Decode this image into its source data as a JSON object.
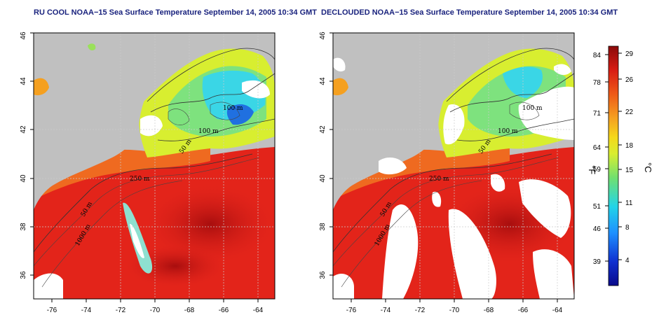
{
  "panels": [
    {
      "title": "RU COOL NOAA−15 Sea Surface Temperature September 14, 2005 10:34 GMT",
      "x_ticks": [
        "-76",
        "-74",
        "-72",
        "-70",
        "-68",
        "-66",
        "-64"
      ],
      "y_ticks": [
        "36",
        "38",
        "40",
        "42",
        "44",
        "46"
      ],
      "contour_labels": [
        "100 m",
        "100 m",
        "50 m",
        "250 m",
        "50 m",
        "1000 m"
      ]
    },
    {
      "title": "DECLOUDED NOAA−15 Sea Surface Temperature September 14, 2005 10:34 GMT",
      "x_ticks": [
        "-76",
        "-74",
        "-72",
        "-70",
        "-68",
        "-66",
        "-64"
      ],
      "y_ticks": [
        "36",
        "38",
        "40",
        "42",
        "44",
        "46"
      ],
      "contour_labels": [
        "100 m",
        "100 m",
        "50 m",
        "250 m",
        "50 m",
        "1000 m"
      ]
    }
  ],
  "colorbar": {
    "fahrenheit_ticks": [
      "84",
      "78",
      "71",
      "64",
      "59",
      "51",
      "46",
      "39"
    ],
    "celsius_ticks": [
      "29",
      "26",
      "22",
      "18",
      "15",
      "11",
      "8",
      "4"
    ],
    "fahrenheit_unit": "°F",
    "celsius_unit": "°C"
  },
  "colors": {
    "land": "#c0c0c0",
    "cloud": "#ffffff",
    "warm": "#e01a10",
    "hot": "#b01010",
    "orange": "#f07a20",
    "yellow": "#f2e21a",
    "green": "#7ee27e",
    "cyan": "#3ad6e6",
    "blue": "#3a8ae6",
    "title_blue": "#1a237e"
  }
}
